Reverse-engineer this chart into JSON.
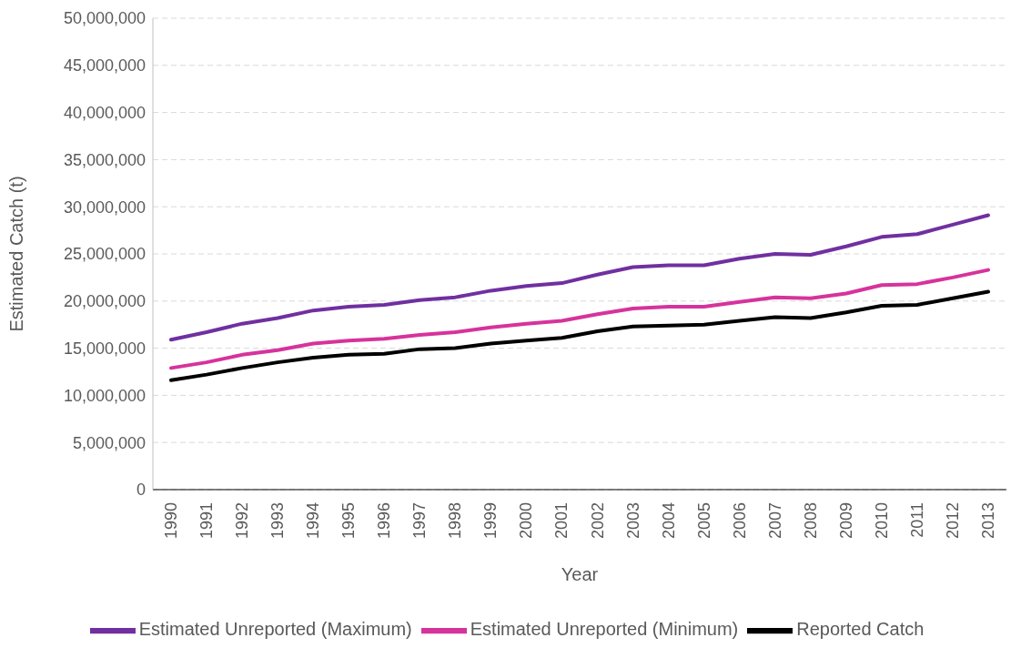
{
  "chart_data": {
    "type": "line",
    "xlabel": "Year",
    "ylabel": "Estimated Catch (t)",
    "categories": [
      "1990",
      "1991",
      "1992",
      "1993",
      "1994",
      "1995",
      "1996",
      "1997",
      "1998",
      "1999",
      "2000",
      "2001",
      "2002",
      "2003",
      "2004",
      "2005",
      "2006",
      "2007",
      "2008",
      "2009",
      "2010",
      "2011",
      "2012",
      "2013"
    ],
    "series": [
      {
        "name": "Reported Catch",
        "color": "#000000",
        "values": [
          11600000,
          12200000,
          12900000,
          13500000,
          14000000,
          14300000,
          14400000,
          14900000,
          15000000,
          15500000,
          15800000,
          16100000,
          16800000,
          17300000,
          17400000,
          17500000,
          17900000,
          18300000,
          18200000,
          18800000,
          19500000,
          19600000,
          20300000,
          21000000
        ]
      },
      {
        "name": "Estimated Unreported (Minimum)",
        "color": "#d6339c",
        "values": [
          12900000,
          13500000,
          14300000,
          14800000,
          15500000,
          15800000,
          16000000,
          16400000,
          16700000,
          17200000,
          17600000,
          17900000,
          18600000,
          19200000,
          19400000,
          19400000,
          19900000,
          20400000,
          20300000,
          20800000,
          21700000,
          21800000,
          22500000,
          23300000
        ]
      },
      {
        "name": "Estimated Unreported (Maximum)",
        "color": "#7030a0",
        "values": [
          15900000,
          16700000,
          17600000,
          18200000,
          19000000,
          19400000,
          19600000,
          20100000,
          20400000,
          21100000,
          21600000,
          21900000,
          22800000,
          23600000,
          23800000,
          23800000,
          24500000,
          25000000,
          24900000,
          25800000,
          26800000,
          27100000,
          28100000,
          29100000
        ]
      }
    ],
    "ylim": [
      0,
      50000000
    ],
    "yticks": [
      {
        "value": 0,
        "label": "0"
      },
      {
        "value": 5000000,
        "label": "5,000,000"
      },
      {
        "value": 10000000,
        "label": "10,000,000"
      },
      {
        "value": 15000000,
        "label": "15,000,000"
      },
      {
        "value": 20000000,
        "label": "20,000,000"
      },
      {
        "value": 25000000,
        "label": "25,000,000"
      },
      {
        "value": 30000000,
        "label": "30,000,000"
      },
      {
        "value": 35000000,
        "label": "35,000,000"
      },
      {
        "value": 40000000,
        "label": "40,000,000"
      },
      {
        "value": 45000000,
        "label": "45,000,000"
      },
      {
        "value": 50000000,
        "label": "50,000,000"
      }
    ],
    "grid": "y",
    "legend": "bottom",
    "marker": "none",
    "line_style": "solid"
  }
}
